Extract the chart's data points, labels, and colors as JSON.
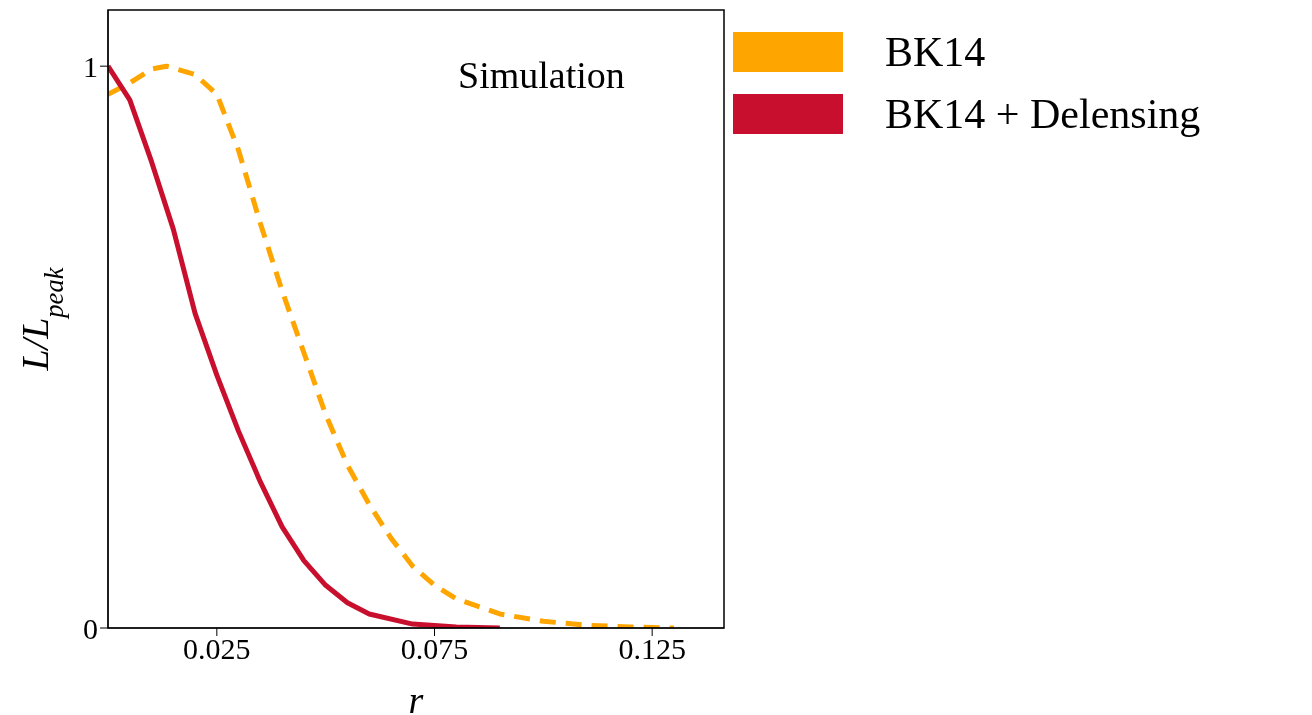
{
  "chart_data": {
    "type": "line",
    "xlabel": "r",
    "ylabel": "L/L$_{peak}$",
    "annotations": [
      "Simulation"
    ],
    "series": [
      {
        "name": "BK14",
        "color": "#ffa500",
        "line_style": "dashed",
        "x": [
          0,
          0.005,
          0.01,
          0.0134,
          0.02,
          0.025,
          0.03,
          0.035,
          0.04,
          0.045,
          0.05,
          0.055,
          0.06,
          0.065,
          0.07,
          0.075,
          0.08,
          0.09,
          0.1,
          0.11,
          0.12,
          0.13
        ],
        "values": [
          0.95,
          0.97,
          0.995,
          1.0,
          0.985,
          0.95,
          0.85,
          0.72,
          0.6,
          0.49,
          0.38,
          0.29,
          0.22,
          0.16,
          0.11,
          0.076,
          0.052,
          0.025,
          0.012,
          0.005,
          0.002,
          0
        ]
      },
      {
        "name": "BK14 + Delensing",
        "color": "#c8102e",
        "line_style": "solid",
        "x": [
          0,
          0.005,
          0.01,
          0.015,
          0.02,
          0.025,
          0.03,
          0.035,
          0.04,
          0.045,
          0.05,
          0.055,
          0.06,
          0.07,
          0.08,
          0.09
        ],
        "values": [
          1.0,
          0.94,
          0.83,
          0.71,
          0.56,
          0.45,
          0.35,
          0.26,
          0.18,
          0.12,
          0.076,
          0.045,
          0.025,
          0.007,
          0.002,
          0
        ]
      }
    ],
    "xlim": [
      0,
      0.1415
    ],
    "xticks": [
      0.025,
      0.075,
      0.125
    ],
    "ylim": [
      0,
      1.1
    ],
    "yticks": [
      0,
      1
    ],
    "grid": false,
    "legend": "top right"
  }
}
